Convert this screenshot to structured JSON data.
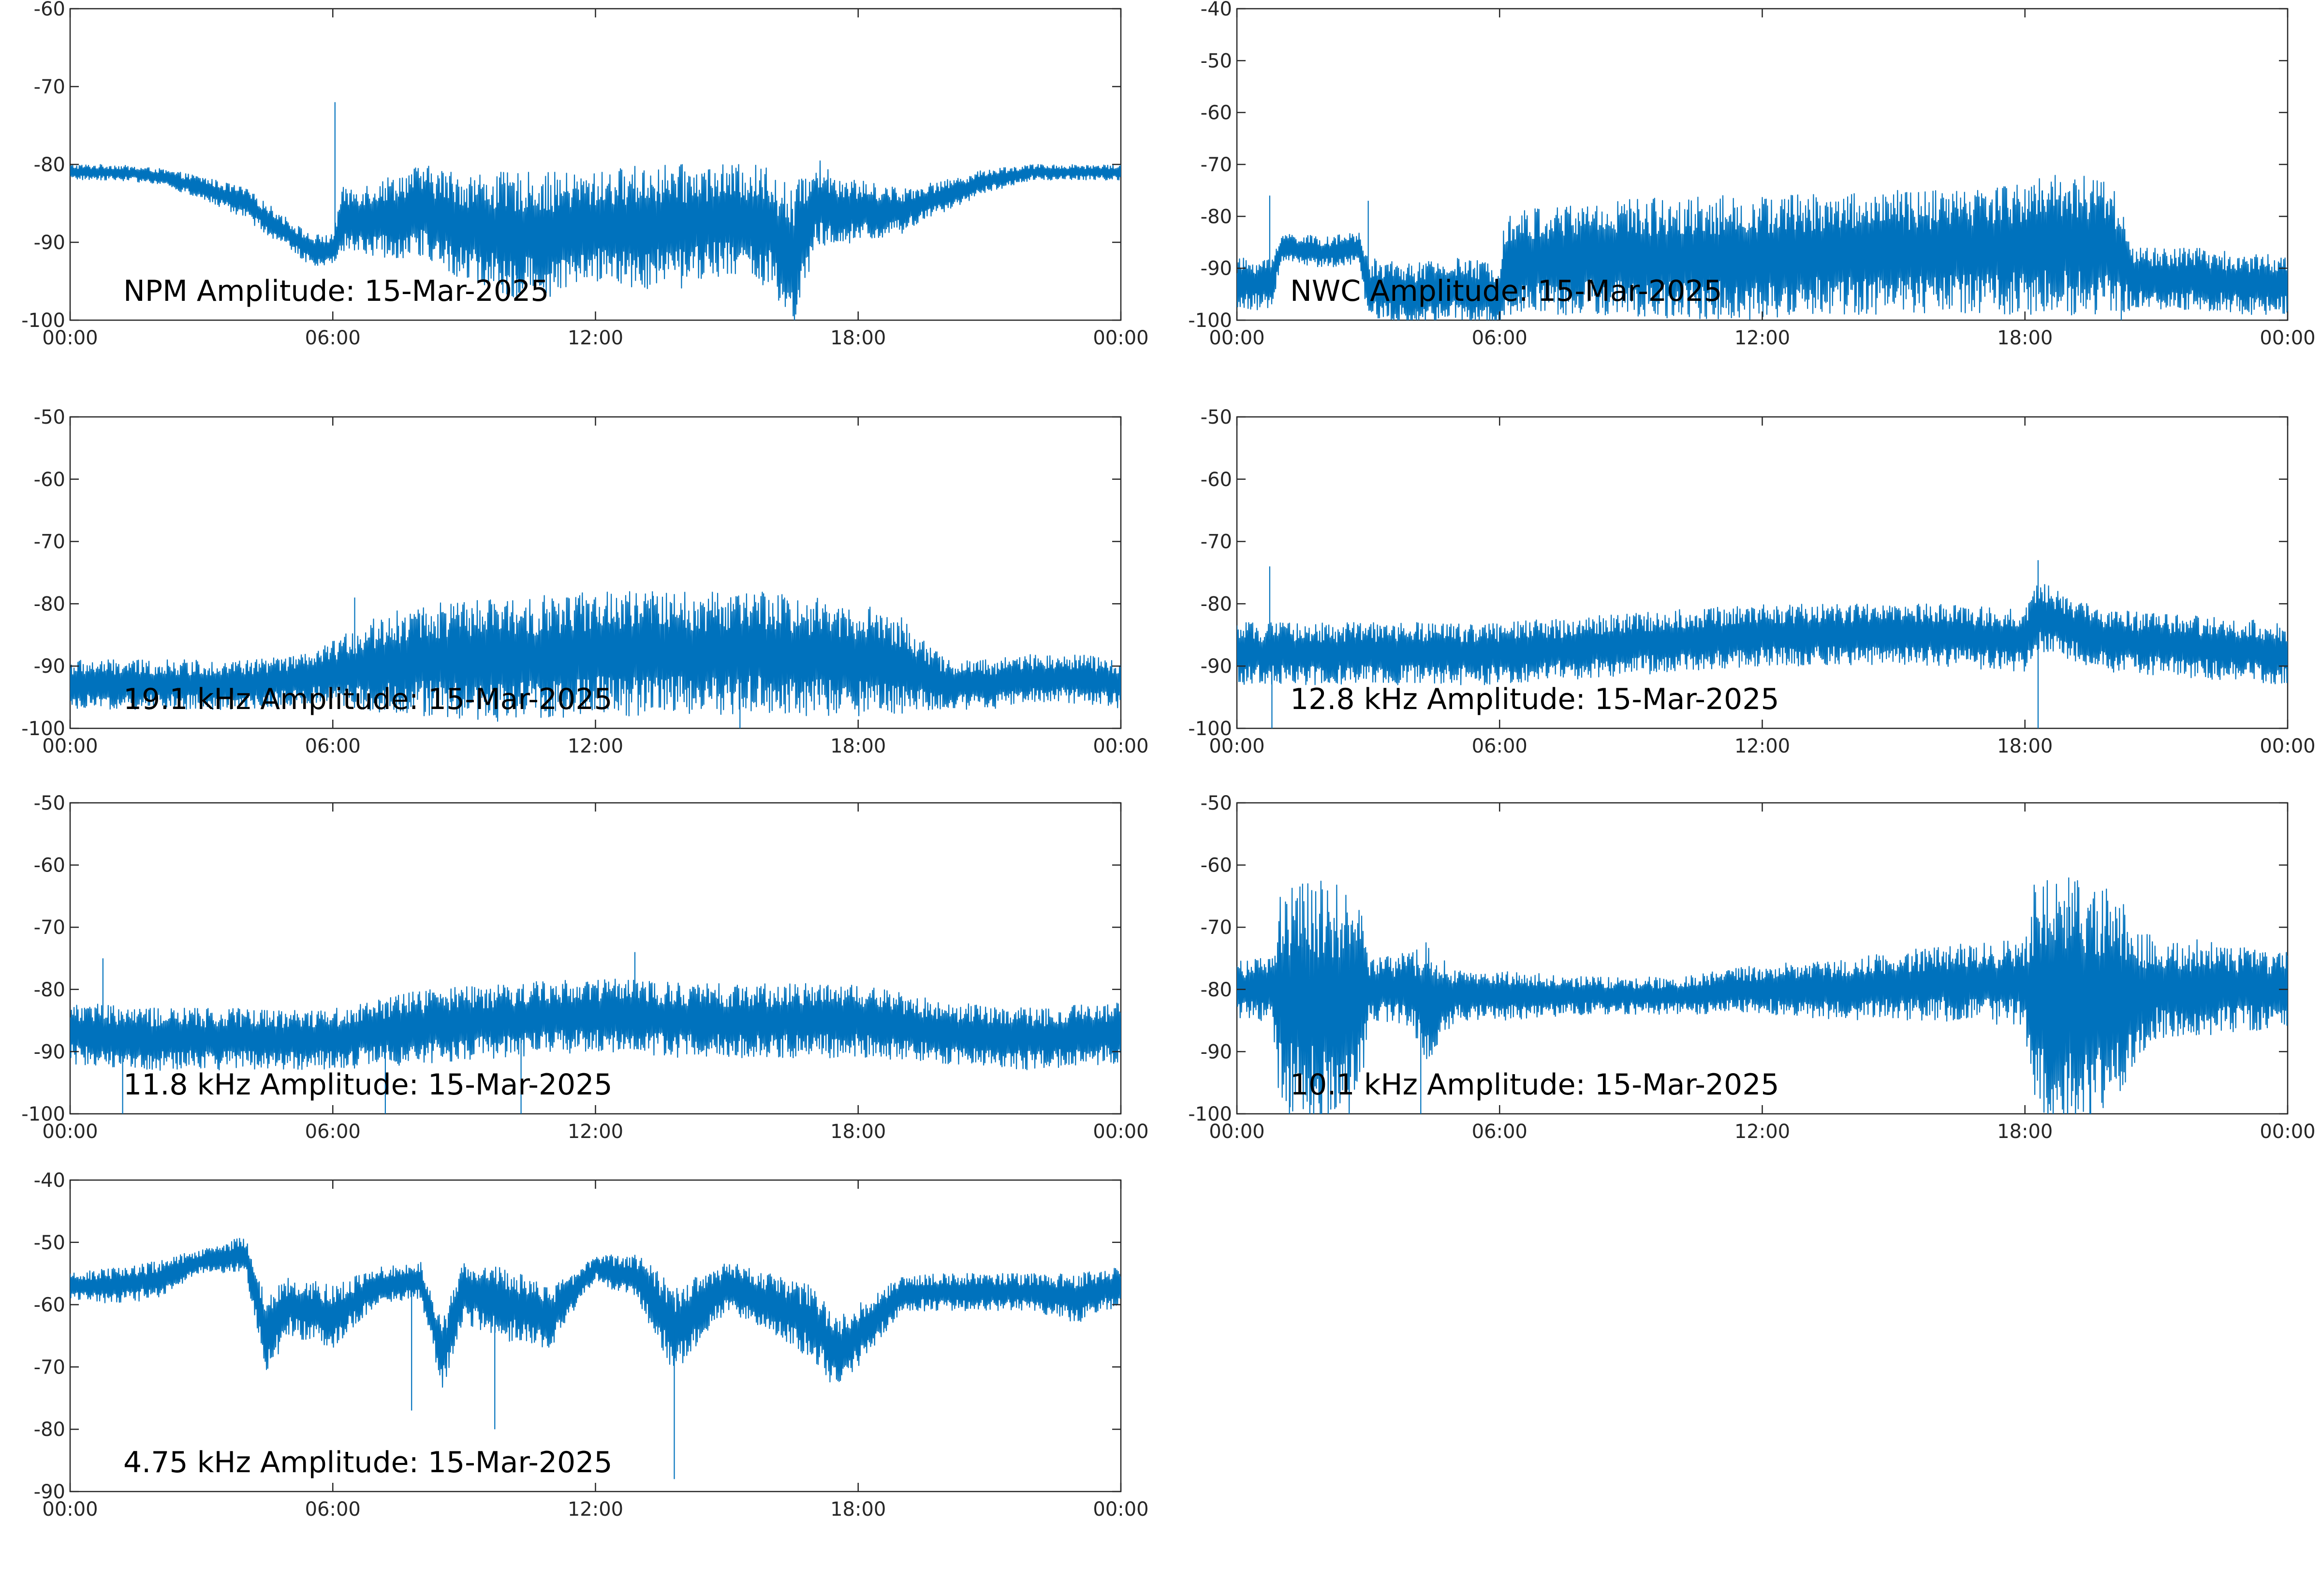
{
  "figure": {
    "trace_color": "#0072BD",
    "axis_color": "#262626"
  },
  "chart_data": [
    {
      "type": "line",
      "title": "NPM Amplitude: 15-Mar-2025",
      "xlabel": "",
      "ylabel": "",
      "xlim": [
        0,
        24
      ],
      "xticks": [
        0,
        6,
        12,
        18,
        24
      ],
      "xtick_labels": [
        "00:00",
        "06:00",
        "12:00",
        "18:00",
        "00:00"
      ],
      "ylim": [
        -100,
        -60
      ],
      "yticks": [
        -100,
        -90,
        -80,
        -70,
        -60
      ],
      "ytick_labels": [
        "-100",
        "-90",
        "-80",
        "-70",
        "-60"
      ],
      "grid": false,
      "series": [
        {
          "x": [
            0,
            1,
            2,
            3,
            4,
            5,
            5.5,
            6,
            6.2,
            7,
            8,
            9,
            10,
            11,
            12,
            13,
            14,
            15,
            16,
            16.5,
            17,
            17.5,
            18,
            19,
            20,
            21,
            22,
            23,
            24
          ],
          "y": [
            -81,
            -81,
            -81.5,
            -83,
            -85,
            -89,
            -91,
            -91,
            -87,
            -87,
            -86,
            -88,
            -89,
            -89,
            -88,
            -88,
            -88,
            -87,
            -88,
            -93,
            -85,
            -86,
            -86,
            -86,
            -84,
            -82,
            -81,
            -81,
            -81
          ],
          "noise": [
            1,
            1,
            1,
            1.5,
            2,
            2,
            2,
            2,
            4,
            5,
            6,
            7,
            8,
            8,
            7,
            8,
            8,
            7,
            8,
            10,
            6,
            5,
            4,
            3,
            2,
            1.5,
            1,
            1,
            1
          ],
          "spikes": [
            {
              "x": 6.05,
              "y": -72
            },
            {
              "x": 10.2,
              "y": -97
            },
            {
              "x": 16.6,
              "y": -98
            }
          ]
        }
      ]
    },
    {
      "type": "line",
      "title": "NWC Amplitude: 15-Mar-2025",
      "xlabel": "",
      "ylabel": "",
      "xlim": [
        0,
        24
      ],
      "xticks": [
        0,
        6,
        12,
        18,
        24
      ],
      "xtick_labels": [
        "00:00",
        "06:00",
        "12:00",
        "18:00",
        "00:00"
      ],
      "ylim": [
        -100,
        -40
      ],
      "yticks": [
        -100,
        -90,
        -80,
        -70,
        -60,
        -50,
        -40
      ],
      "ytick_labels": [
        "-100",
        "-90",
        "-80",
        "-70",
        "-60",
        "-50",
        "-40"
      ],
      "grid": false,
      "series": [
        {
          "x": [
            0,
            0.8,
            1,
            2,
            2.8,
            3,
            4,
            5,
            6,
            6.1,
            8,
            10,
            12,
            14,
            16,
            18,
            19,
            20,
            20.5,
            21,
            22,
            23,
            24
          ],
          "y": [
            -93,
            -93,
            -86,
            -87,
            -86,
            -94,
            -95,
            -94,
            -95,
            -89,
            -88,
            -88,
            -88,
            -87,
            -87,
            -86,
            -85,
            -86,
            -92,
            -92,
            -92,
            -93,
            -93
          ],
          "noise": [
            5,
            5,
            3,
            3,
            3,
            6,
            6,
            6,
            6,
            10,
            11,
            12,
            12,
            12,
            12,
            13,
            14,
            13,
            6,
            6,
            6,
            6,
            6
          ],
          "spikes": [
            {
              "x": 0.75,
              "y": -76
            },
            {
              "x": 3.0,
              "y": -77
            },
            {
              "x": 18.4,
              "y": -75
            },
            {
              "x": 4.1,
              "y": -100
            },
            {
              "x": 20.2,
              "y": -100
            }
          ]
        }
      ]
    },
    {
      "type": "line",
      "title": "19.1 kHz Amplitude: 15-Mar-2025",
      "xlabel": "",
      "ylabel": "",
      "xlim": [
        0,
        24
      ],
      "xticks": [
        0,
        6,
        12,
        18,
        24
      ],
      "xtick_labels": [
        "00:00",
        "06:00",
        "12:00",
        "18:00",
        "00:00"
      ],
      "ylim": [
        -100,
        -50
      ],
      "yticks": [
        -100,
        -90,
        -80,
        -70,
        -60,
        -50
      ],
      "ytick_labels": [
        "-100",
        "-90",
        "-80",
        "-70",
        "-60",
        "-50"
      ],
      "grid": false,
      "series": [
        {
          "x": [
            0,
            2,
            4,
            5.5,
            6,
            7,
            8,
            10,
            12,
            14,
            16,
            18,
            19,
            20,
            21,
            22,
            23,
            24
          ],
          "y": [
            -93,
            -93,
            -93,
            -92,
            -91,
            -90,
            -89,
            -89,
            -88,
            -88,
            -88,
            -89,
            -90,
            -93,
            -93,
            -92,
            -92,
            -93
          ],
          "noise": [
            4,
            4,
            4,
            4,
            5,
            8,
            9,
            10,
            10,
            10,
            10,
            9,
            8,
            4,
            4,
            4,
            4,
            4
          ],
          "spikes": [
            {
              "x": 6.5,
              "y": -79
            },
            {
              "x": 13.3,
              "y": -78
            },
            {
              "x": 15.3,
              "y": -100
            }
          ]
        }
      ]
    },
    {
      "type": "line",
      "title": "12.8 kHz Amplitude: 15-Mar-2025",
      "xlabel": "",
      "ylabel": "",
      "xlim": [
        0,
        24
      ],
      "xticks": [
        0,
        6,
        12,
        18,
        24
      ],
      "xtick_labels": [
        "00:00",
        "06:00",
        "12:00",
        "18:00",
        "00:00"
      ],
      "ylim": [
        -100,
        -50
      ],
      "yticks": [
        -100,
        -90,
        -80,
        -70,
        -60,
        -50
      ],
      "ytick_labels": [
        "-100",
        "-90",
        "-80",
        "-70",
        "-60",
        "-50"
      ],
      "grid": false,
      "series": [
        {
          "x": [
            0,
            2,
            4,
            6,
            8,
            10,
            12,
            14,
            16,
            18,
            18.3,
            19,
            20,
            22,
            24
          ],
          "y": [
            -88,
            -88,
            -88,
            -88,
            -87,
            -86,
            -85,
            -85,
            -85,
            -86,
            -82,
            -84,
            -86,
            -87,
            -88
          ],
          "noise": [
            5,
            5,
            5,
            5,
            5,
            5,
            5,
            5,
            5,
            5,
            6,
            5,
            5,
            5,
            5
          ],
          "spikes": [
            {
              "x": 0.75,
              "y": -74
            },
            {
              "x": 0.8,
              "y": -100
            },
            {
              "x": 18.3,
              "y": -73
            },
            {
              "x": 18.3,
              "y": -100
            }
          ]
        }
      ]
    },
    {
      "type": "line",
      "title": "11.8 kHz Amplitude: 15-Mar-2025",
      "xlabel": "",
      "ylabel": "",
      "xlim": [
        0,
        24
      ],
      "xticks": [
        0,
        6,
        12,
        18,
        24
      ],
      "xtick_labels": [
        "00:00",
        "06:00",
        "12:00",
        "18:00",
        "00:00"
      ],
      "ylim": [
        -100,
        -50
      ],
      "yticks": [
        -100,
        -90,
        -80,
        -70,
        -60,
        -50
      ],
      "ytick_labels": [
        "-100",
        "-90",
        "-80",
        "-70",
        "-60",
        "-50"
      ],
      "grid": false,
      "series": [
        {
          "x": [
            0,
            2,
            4,
            6,
            8,
            10,
            12,
            14,
            16,
            18,
            20,
            22,
            24
          ],
          "y": [
            -87,
            -88,
            -88,
            -88,
            -86,
            -85,
            -84,
            -85,
            -85,
            -85,
            -87,
            -88,
            -87
          ],
          "noise": [
            5,
            5,
            5,
            5,
            6,
            6,
            6,
            6,
            6,
            6,
            5,
            5,
            5
          ],
          "spikes": [
            {
              "x": 0.75,
              "y": -75
            },
            {
              "x": 1.2,
              "y": -100
            },
            {
              "x": 12.9,
              "y": -74
            },
            {
              "x": 7.2,
              "y": -100
            },
            {
              "x": 10.3,
              "y": -100
            }
          ]
        }
      ]
    },
    {
      "type": "line",
      "title": "10.1 kHz Amplitude: 15-Mar-2025",
      "xlabel": "",
      "ylabel": "",
      "xlim": [
        0,
        24
      ],
      "xticks": [
        0,
        6,
        12,
        18,
        24
      ],
      "xtick_labels": [
        "00:00",
        "06:00",
        "12:00",
        "18:00",
        "00:00"
      ],
      "ylim": [
        -100,
        -50
      ],
      "yticks": [
        -100,
        -90,
        -80,
        -70,
        -60,
        -50
      ],
      "ytick_labels": [
        "-100",
        "-90",
        "-80",
        "-70",
        "-60",
        "-50"
      ],
      "grid": false,
      "series": [
        {
          "x": [
            0,
            0.8,
            1,
            2,
            2.8,
            3,
            4,
            4.3,
            5,
            6,
            8,
            10,
            12,
            14,
            16,
            18,
            18.2,
            19,
            20,
            21,
            22,
            23,
            24
          ],
          "y": [
            -80,
            -80,
            -82,
            -82,
            -82,
            -80,
            -80,
            -82,
            -81,
            -81,
            -81,
            -81,
            -80,
            -80,
            -79,
            -79,
            -82,
            -82,
            -82,
            -80,
            -80,
            -80,
            -80
          ],
          "noise": [
            5,
            5,
            18,
            20,
            18,
            5,
            6,
            10,
            4,
            4,
            3,
            3,
            4,
            5,
            6,
            7,
            20,
            20,
            18,
            8,
            8,
            7,
            6
          ],
          "spikes": [
            {
              "x": 1.5,
              "y": -63
            },
            {
              "x": 19.0,
              "y": -62
            },
            {
              "x": 1.2,
              "y": -100
            },
            {
              "x": 4.2,
              "y": -100
            },
            {
              "x": 19.5,
              "y": -100
            }
          ]
        }
      ]
    },
    {
      "type": "line",
      "title": "4.75 kHz Amplitude: 15-Mar-2025",
      "xlabel": "",
      "ylabel": "",
      "xlim": [
        0,
        24
      ],
      "xticks": [
        0,
        6,
        12,
        18,
        24
      ],
      "xtick_labels": [
        "00:00",
        "06:00",
        "12:00",
        "18:00",
        "00:00"
      ],
      "ylim": [
        -90,
        -40
      ],
      "yticks": [
        -90,
        -80,
        -70,
        -60,
        -50,
        -40
      ],
      "ytick_labels": [
        "-90",
        "-80",
        "-70",
        "-60",
        "-50",
        "-40"
      ],
      "grid": false,
      "series": [
        {
          "x": [
            0,
            1,
            2,
            3,
            4,
            4.5,
            5,
            6,
            7,
            8,
            8.5,
            9,
            10,
            11,
            11.5,
            12,
            13,
            13.8,
            14.5,
            15,
            16,
            17,
            17.5,
            18,
            19,
            20,
            21,
            22,
            23,
            24
          ],
          "y": [
            -57,
            -57,
            -56,
            -53,
            -52,
            -65,
            -60,
            -62,
            -57,
            -56,
            -68,
            -58,
            -60,
            -62,
            -58,
            -54,
            -56,
            -64,
            -60,
            -57,
            -60,
            -63,
            -68,
            -65,
            -58,
            -58,
            -58,
            -58,
            -59,
            -57
          ],
          "noise": [
            2,
            3,
            3,
            2,
            3,
            6,
            5,
            5,
            3,
            3,
            6,
            5,
            6,
            5,
            3,
            2,
            4,
            7,
            5,
            4,
            5,
            6,
            6,
            5,
            3,
            3,
            3,
            3,
            4,
            3
          ],
          "spikes": [
            {
              "x": 9.7,
              "y": -80
            },
            {
              "x": 13.8,
              "y": -88
            },
            {
              "x": 7.8,
              "y": -77
            }
          ]
        }
      ]
    }
  ]
}
